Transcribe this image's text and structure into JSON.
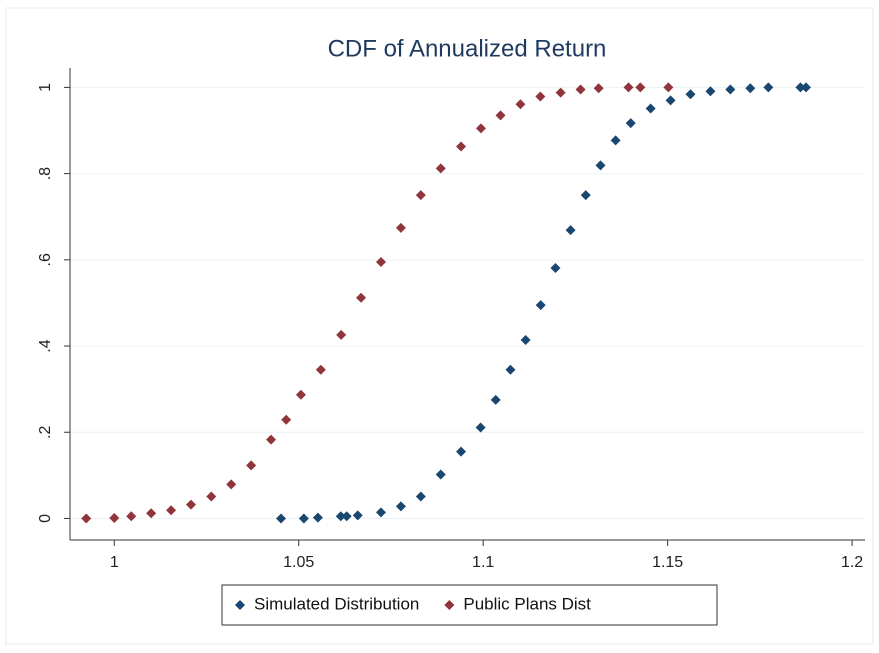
{
  "chart_data": {
    "type": "scatter",
    "title": "CDF of Annualized Return",
    "xlim": [
      0.988,
      1.2035
    ],
    "ylim": [
      -0.05,
      1.045
    ],
    "xticks": [
      1,
      1.05,
      1.1,
      1.15,
      1.2
    ],
    "yticks": [
      0,
      {
        "value": 0.2,
        "label": ".2"
      },
      {
        "value": 0.4,
        "label": ".4"
      },
      {
        "value": 0.6,
        "label": ".6"
      },
      {
        "value": 0.8,
        "label": ".8"
      },
      1
    ],
    "grid": true,
    "legend": "bottom",
    "series": [
      {
        "name": "Simulated Distribution",
        "color": "#1a476f",
        "x": [
          1.0452,
          1.0514,
          1.0552,
          1.0614,
          1.063,
          1.066,
          1.0723,
          1.0777,
          1.0831,
          1.0885,
          1.094,
          1.0993,
          1.1034,
          1.1074,
          1.1115,
          1.1156,
          1.1196,
          1.1237,
          1.1278,
          1.1318,
          1.1359,
          1.14,
          1.1454,
          1.1508,
          1.1562,
          1.1616,
          1.167,
          1.1724,
          1.1773,
          1.186,
          1.1875
        ],
        "values": [
          0,
          0,
          0.002,
          0.005,
          0.005,
          0.007,
          0.014,
          0.028,
          0.051,
          0.102,
          0.155,
          0.211,
          0.275,
          0.345,
          0.414,
          0.495,
          0.581,
          0.669,
          0.75,
          0.819,
          0.877,
          0.917,
          0.951,
          0.97,
          0.984,
          0.991,
          0.995,
          0.998,
          1,
          1,
          1
        ]
      },
      {
        "name": "Public Plans Dist",
        "color": "#90353b",
        "x": [
          0.9924,
          1.0,
          1.0046,
          1.01,
          1.0154,
          1.0208,
          1.0263,
          1.0317,
          1.0371,
          1.0425,
          1.0466,
          1.0506,
          1.056,
          1.0615,
          1.0669,
          1.0723,
          1.0777,
          1.0831,
          1.0885,
          1.094,
          1.0994,
          1.1047,
          1.1101,
          1.1155,
          1.121,
          1.1264,
          1.1313,
          1.1394,
          1.1426,
          1.1502
        ],
        "values": [
          0,
          0.001,
          0.005,
          0.012,
          0.019,
          0.032,
          0.051,
          0.079,
          0.123,
          0.183,
          0.229,
          0.287,
          0.345,
          0.426,
          0.512,
          0.595,
          0.674,
          0.75,
          0.812,
          0.863,
          0.905,
          0.935,
          0.961,
          0.979,
          0.988,
          0.995,
          0.998,
          1,
          1,
          1
        ]
      }
    ]
  }
}
